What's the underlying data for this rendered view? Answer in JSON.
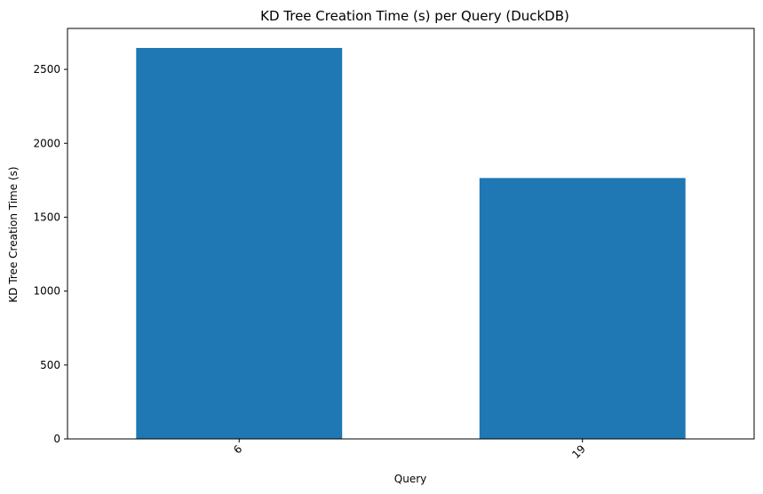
{
  "chart_data": {
    "type": "bar",
    "title": "KD Tree Creation Time (s) per Query (DuckDB)",
    "xlabel": "Query",
    "ylabel": "KD Tree Creation Time (s)",
    "categories": [
      "6",
      "19"
    ],
    "values": [
      2645,
      1765
    ],
    "ylim": [
      0,
      2777
    ],
    "yticks": [
      0,
      500,
      1000,
      1500,
      2000,
      2500
    ],
    "grid": false,
    "legend": "none",
    "bar_color": "#1f77b4"
  }
}
